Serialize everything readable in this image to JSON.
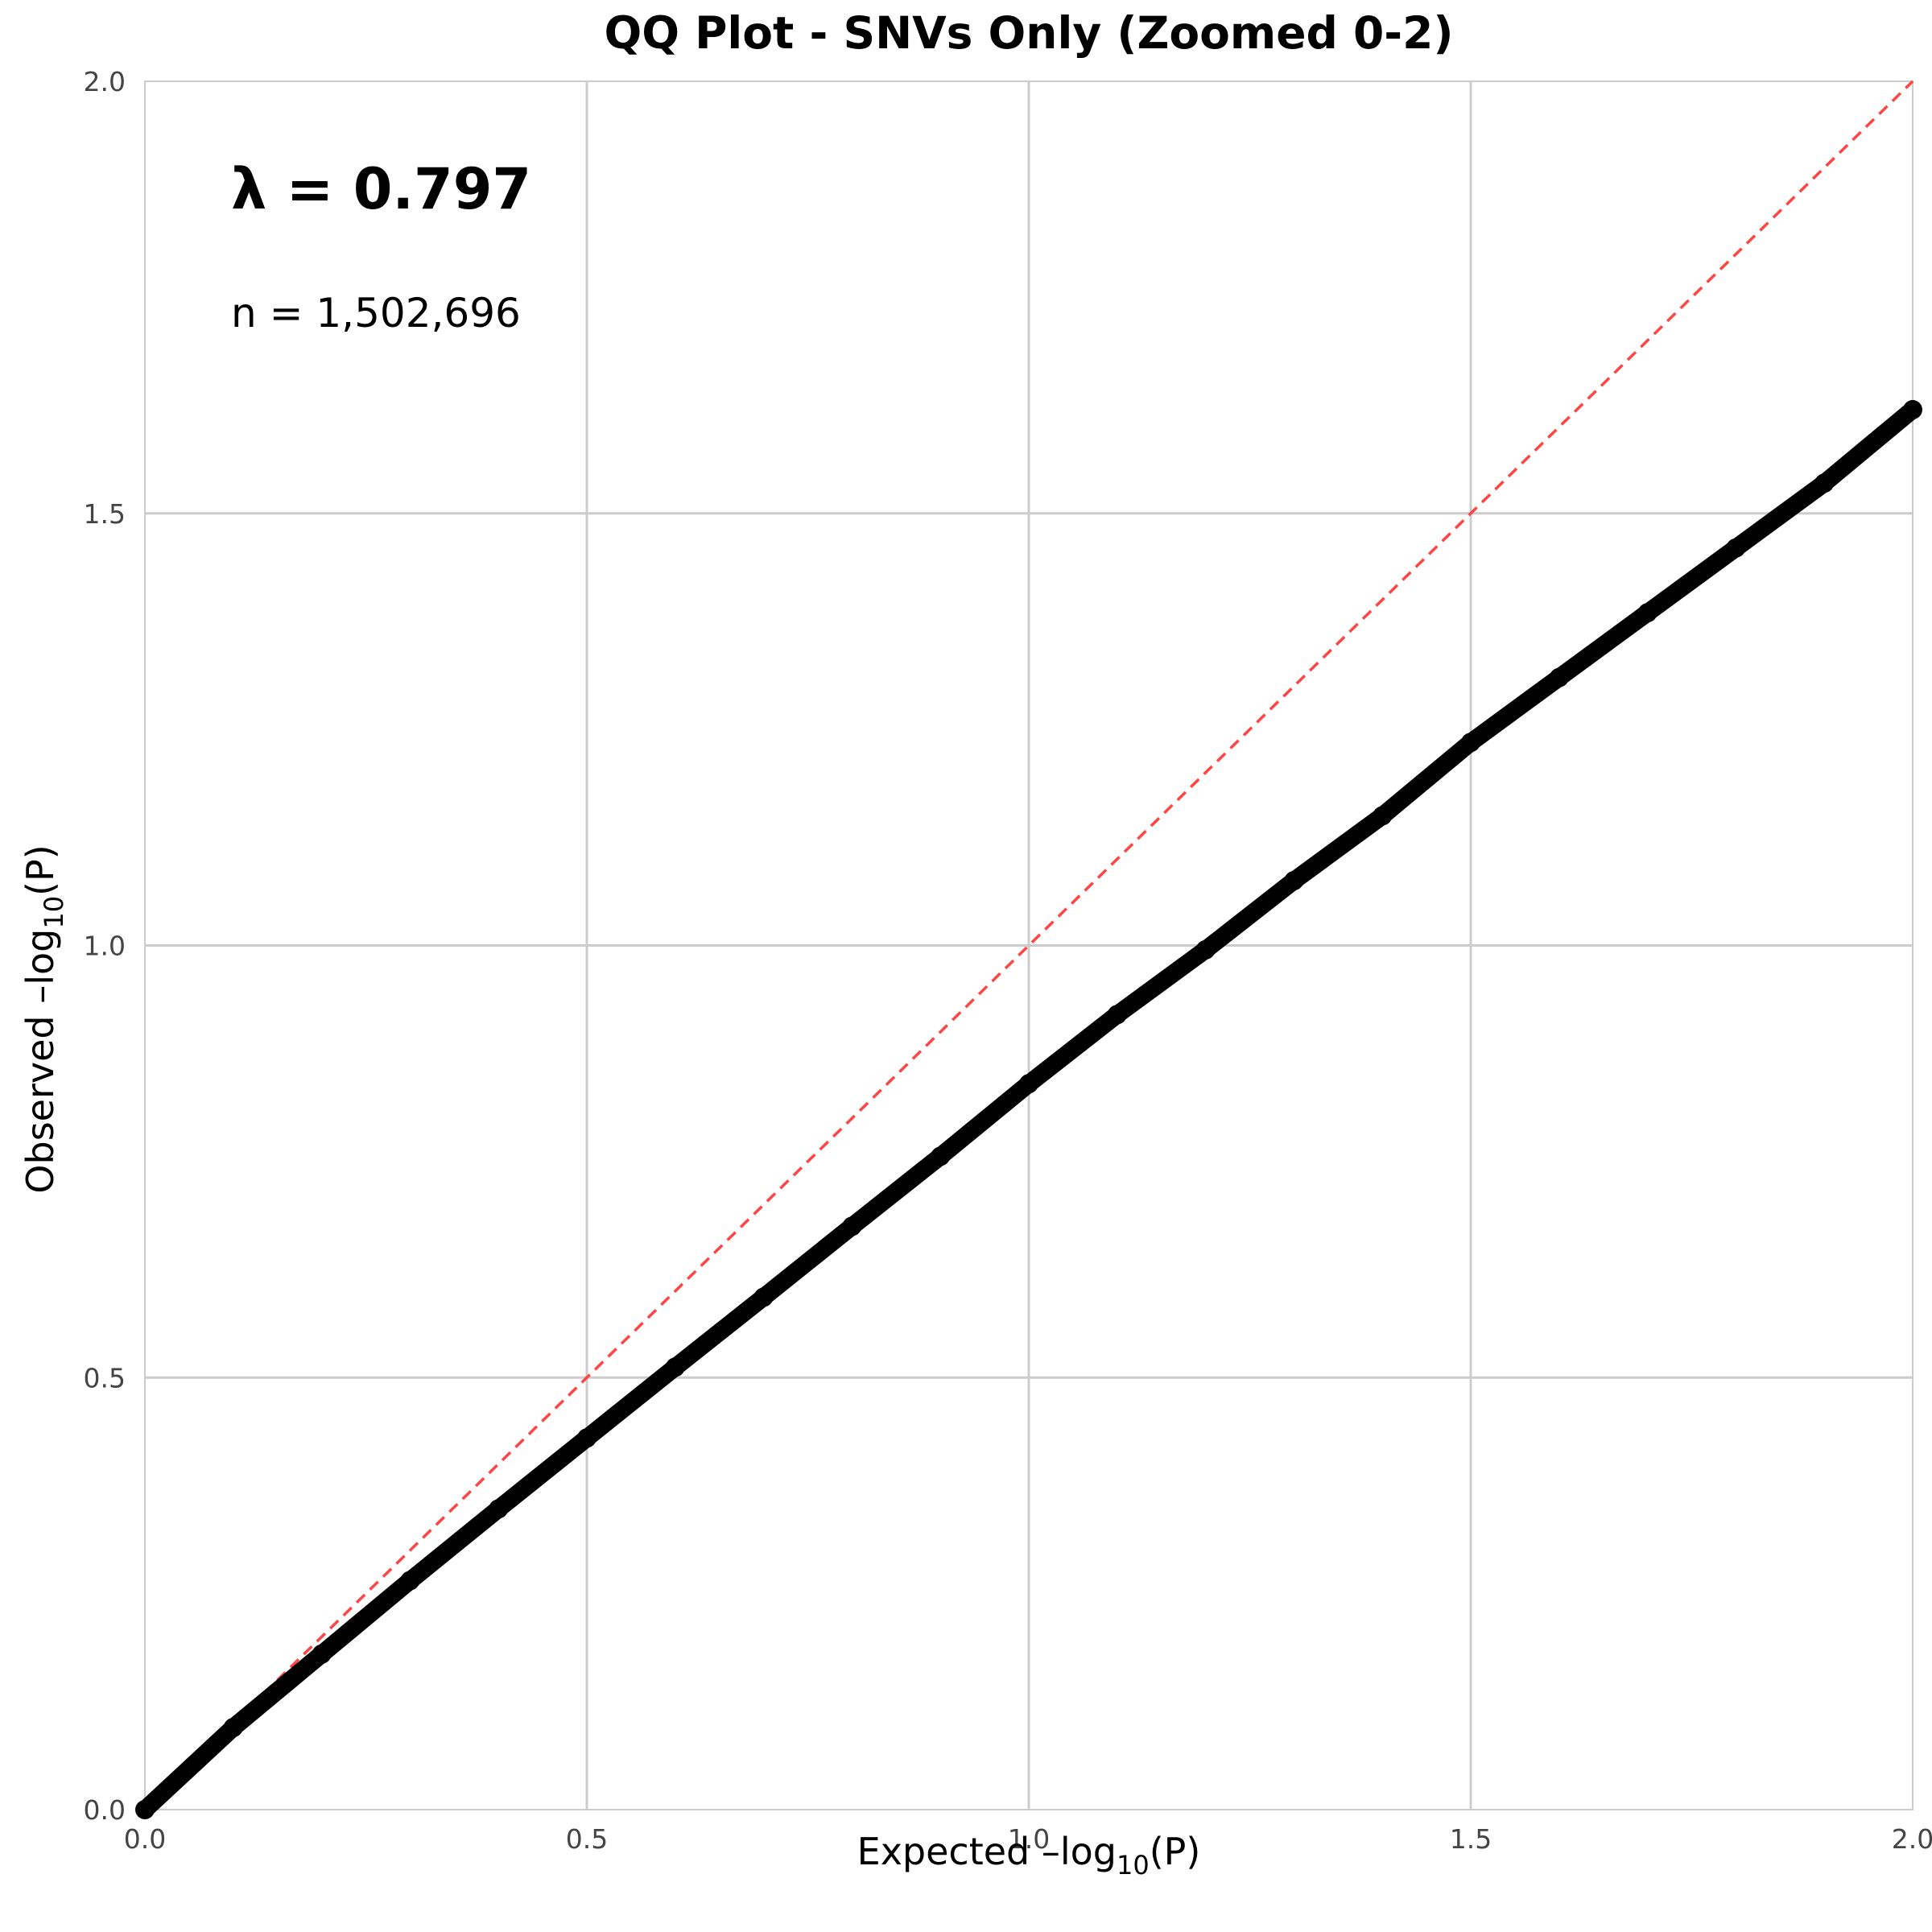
{
  "chart_data": {
    "type": "scatter",
    "title": "QQ Plot - SNVs Only (Zoomed 0-2)",
    "xlabel": "Expected –log10(P)",
    "ylabel": "Observed –log10(P)",
    "xlim": [
      0,
      2
    ],
    "ylim": [
      0,
      2
    ],
    "xticks": [
      "0.0",
      "0.5",
      "1.0",
      "1.5",
      "2.0"
    ],
    "yticks": [
      "0.0",
      "0.5",
      "1.0",
      "1.5",
      "2.0"
    ],
    "grid": true,
    "annotations": {
      "lambda": "λ = 0.797",
      "n": "n = 1,502,696"
    },
    "reference_line": {
      "type": "y=x",
      "color": "#ff4444",
      "style": "dashed"
    },
    "series": [
      {
        "color": "#000000",
        "x": [
          0.0,
          0.1,
          0.2,
          0.3,
          0.4,
          0.5,
          0.6,
          0.7,
          0.8,
          0.9,
          1.0,
          1.1,
          1.2,
          1.3,
          1.4,
          1.5,
          1.6,
          1.7,
          1.8,
          1.9,
          2.0
        ],
        "y": [
          0.0,
          0.095,
          0.18,
          0.265,
          0.348,
          0.43,
          0.512,
          0.593,
          0.675,
          0.756,
          0.84,
          0.92,
          0.995,
          1.075,
          1.15,
          1.235,
          1.31,
          1.385,
          1.46,
          1.535,
          1.62
        ]
      }
    ]
  }
}
